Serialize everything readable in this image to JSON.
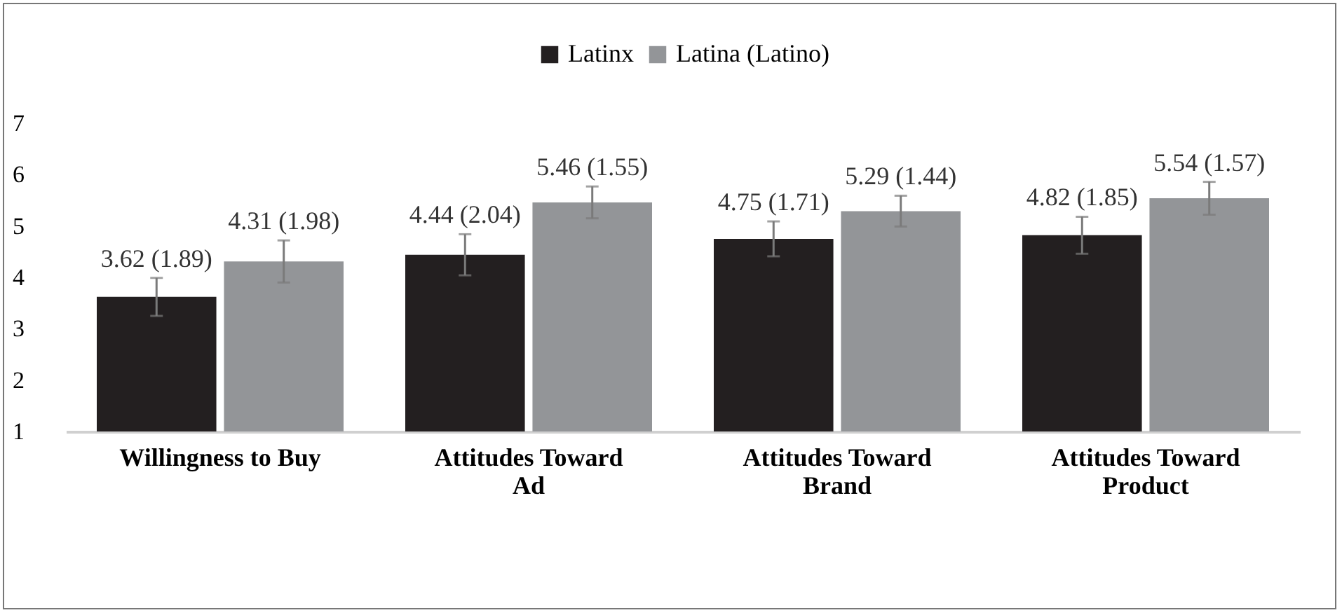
{
  "chart_data": {
    "type": "bar",
    "categories": [
      "Willingness to Buy",
      "Attitudes Toward Ad",
      "Attitudes Toward Brand",
      "Attitudes Toward Product"
    ],
    "series": [
      {
        "name": "Latinx",
        "color": "#231f20",
        "values": [
          3.62,
          4.44,
          4.75,
          4.82
        ],
        "errors": [
          0.37,
          0.4,
          0.34,
          0.36
        ],
        "value_labels": [
          "3.62 (1.89)",
          "4.44 (2.04)",
          "4.75 (1.71)",
          "4.82 (1.85)"
        ]
      },
      {
        "name": "Latina (Latino)",
        "color": "#939598",
        "values": [
          4.31,
          5.46,
          5.29,
          5.54
        ],
        "errors": [
          0.41,
          0.31,
          0.3,
          0.32
        ],
        "value_labels": [
          "4.31 (1.98)",
          "5.46 (1.55)",
          "5.29 (1.44)",
          "5.54 (1.57)"
        ]
      }
    ],
    "ylim": [
      1,
      7
    ],
    "yticks": [
      1,
      2,
      3,
      4,
      5,
      6,
      7
    ],
    "grid": false,
    "legend": "top"
  }
}
